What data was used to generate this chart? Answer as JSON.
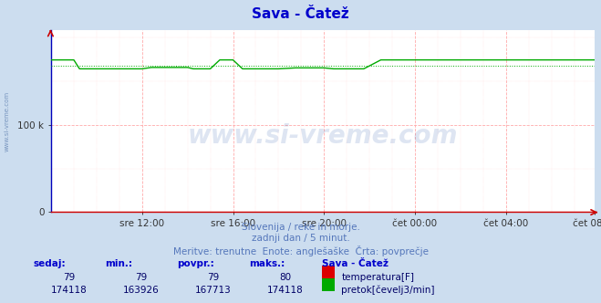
{
  "title": "Sava - Čatež",
  "title_color": "#0000cc",
  "bg_color": "#ccddef",
  "plot_bg_color": "#ffffff",
  "grid_color": "#ffaaaa",
  "xlabel": "",
  "ylabel": "",
  "ylim": [
    0,
    208000
  ],
  "yticks": [
    0,
    100000
  ],
  "ytick_labels": [
    "0",
    "100 k"
  ],
  "subtitle1": "Slovenija / reke in morje.",
  "subtitle2": "zadnji dan / 5 minut.",
  "subtitle3": "Meritve: trenutne  Enote: anglešaške  Črta: povprečje",
  "subtitle_color": "#5577bb",
  "watermark": "www.si-vreme.com",
  "watermark_color": "#2255aa",
  "left_label": "www.si-vreme.com",
  "temp_color": "#dd0000",
  "flow_color": "#00aa00",
  "flow_avg": 167713,
  "flow_min": 163926,
  "flow_max": 174118,
  "temp_min": 79,
  "temp_max": 80,
  "temp_now": 79,
  "flow_now": 174118,
  "table_header_color": "#0000cc",
  "table_value_color": "#000066",
  "station_name": "Sava - Čatež",
  "legend_temp": "temperatura[F]",
  "legend_flow": "pretok[čevelj3/min]",
  "xtick_labels": [
    "sre 12:00",
    "sre 16:00",
    "sre 20:00",
    "čet 00:00",
    "čet 04:00",
    "čet 08:00"
  ],
  "temp_row": [
    "79",
    "79",
    "79",
    "80"
  ],
  "flow_row": [
    "174118",
    "163926",
    "167713",
    "174118"
  ]
}
